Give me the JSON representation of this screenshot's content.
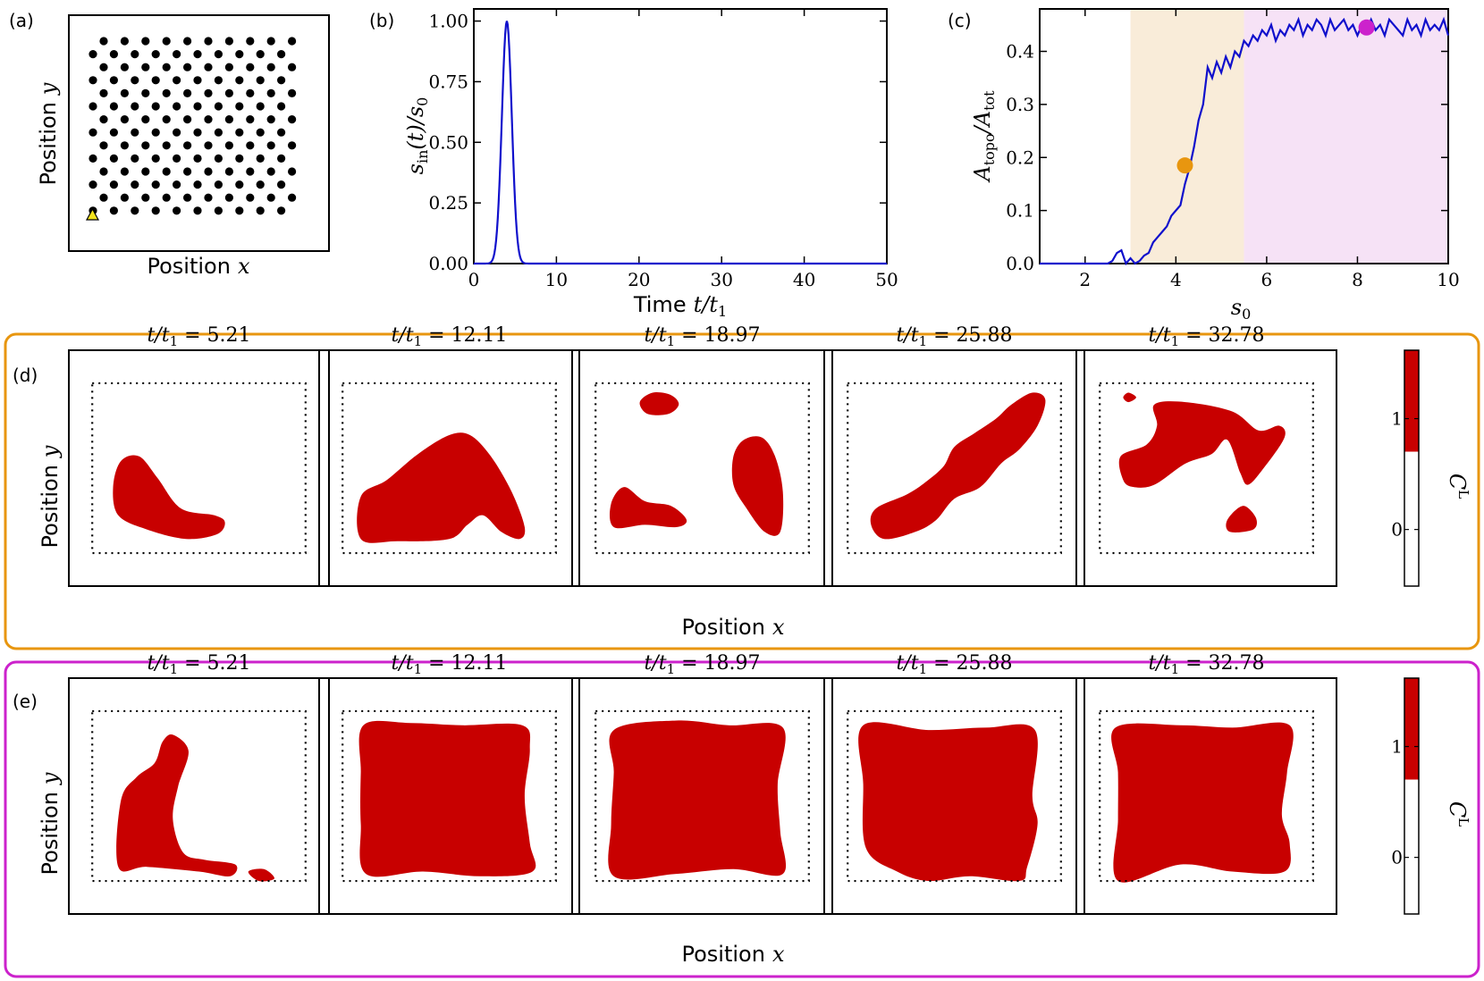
{
  "panel_labels": {
    "a": "(a)",
    "b": "(b)",
    "c": "(c)",
    "d": "(d)",
    "e": "(e)"
  },
  "axis_text": {
    "position_x": "Position",
    "position_y": "Position",
    "var_x": "x",
    "var_y": "y",
    "time": "Time",
    "time_var": "t/t",
    "time_sub": "1"
  },
  "chart_b": {
    "type": "line",
    "ylabel_main": "s",
    "ylabel_sub": "in",
    "ylabel_rest": "(t)/s",
    "ylabel_sub2": "0",
    "xlim": [
      0,
      50
    ],
    "ylim": [
      0,
      1.05
    ],
    "x_ticks": [
      "0",
      "10",
      "20",
      "30",
      "40",
      "50"
    ],
    "y_ticks": [
      "0.00",
      "0.25",
      "0.50",
      "0.75",
      "1.00"
    ],
    "x_tick_values": [
      0,
      10,
      20,
      30,
      40,
      50
    ],
    "y_tick_values": [
      0,
      0.25,
      0.5,
      0.75,
      1.0
    ],
    "pulse_center": 4,
    "pulse_width": 0.6,
    "color": "#1010cc"
  },
  "chart_c": {
    "type": "line",
    "ylabel_main": "A",
    "ylabel_sub": "topo",
    "ylabel_rest": "/A",
    "ylabel_sub2": "tot",
    "xlabel_main": "s",
    "xlabel_sub": "0",
    "xlim": [
      1,
      10
    ],
    "ylim": [
      0,
      0.48
    ],
    "x_ticks": [
      "2",
      "4",
      "6",
      "8",
      "10"
    ],
    "y_ticks": [
      "0.0",
      "0.1",
      "0.2",
      "0.3",
      "0.4"
    ],
    "x_tick_values": [
      2,
      4,
      6,
      8,
      10
    ],
    "y_tick_values": [
      0,
      0.1,
      0.2,
      0.3,
      0.4
    ],
    "region_orange": [
      3,
      5.5
    ],
    "region_purple": [
      5.5,
      10
    ],
    "orange_color": "#f9ecd9",
    "purple_color": "#f6e2f6",
    "line_color": "#1010cc",
    "marker_orange": {
      "x": 4.2,
      "y": 0.185,
      "color": "#e8960f"
    },
    "marker_purple": {
      "x": 8.2,
      "y": 0.445,
      "color": "#cc22cc"
    },
    "x": [
      1.0,
      1.5,
      2.0,
      2.5,
      2.6,
      2.7,
      2.8,
      2.9,
      3.0,
      3.1,
      3.2,
      3.3,
      3.4,
      3.5,
      3.6,
      3.7,
      3.8,
      3.9,
      4.0,
      4.1,
      4.2,
      4.3,
      4.4,
      4.5,
      4.6,
      4.7,
      4.8,
      4.9,
      5.0,
      5.1,
      5.2,
      5.3,
      5.4,
      5.5,
      5.6,
      5.7,
      5.8,
      5.9,
      6.0,
      6.1,
      6.2,
      6.3,
      6.4,
      6.5,
      6.6,
      6.7,
      6.8,
      6.9,
      7.0,
      7.1,
      7.2,
      7.3,
      7.4,
      7.5,
      7.6,
      7.7,
      7.8,
      7.9,
      8.0,
      8.1,
      8.2,
      8.3,
      8.4,
      8.5,
      8.6,
      8.7,
      8.8,
      8.9,
      9.0,
      9.1,
      9.2,
      9.3,
      9.4,
      9.5,
      9.6,
      9.7,
      9.8,
      9.9,
      10.0
    ],
    "y": [
      0.0,
      0.0,
      0.0,
      0.0,
      0.005,
      0.02,
      0.025,
      0.0,
      0.01,
      0.0,
      0.005,
      0.015,
      0.02,
      0.04,
      0.05,
      0.06,
      0.07,
      0.09,
      0.1,
      0.11,
      0.15,
      0.18,
      0.22,
      0.27,
      0.3,
      0.37,
      0.35,
      0.38,
      0.36,
      0.39,
      0.37,
      0.4,
      0.39,
      0.42,
      0.41,
      0.43,
      0.42,
      0.44,
      0.43,
      0.45,
      0.42,
      0.44,
      0.43,
      0.45,
      0.44,
      0.46,
      0.43,
      0.45,
      0.44,
      0.46,
      0.45,
      0.43,
      0.46,
      0.44,
      0.45,
      0.46,
      0.44,
      0.45,
      0.43,
      0.45,
      0.44,
      0.46,
      0.44,
      0.45,
      0.43,
      0.46,
      0.45,
      0.44,
      0.43,
      0.46,
      0.44,
      0.45,
      0.43,
      0.46,
      0.44,
      0.45,
      0.44,
      0.46,
      0.43
    ]
  },
  "snapshots": {
    "t_prefix": "t/t",
    "t_sub": "1",
    "times": [
      "5.21",
      "12.11",
      "18.97",
      "25.88",
      "32.78"
    ],
    "fill_color": "#c80000"
  },
  "colorbar": {
    "label": "C",
    "label_sup": "L",
    "ticks": [
      "1",
      "0"
    ]
  },
  "frames": {
    "orange": "#e8960f",
    "purple": "#cc22cc"
  }
}
